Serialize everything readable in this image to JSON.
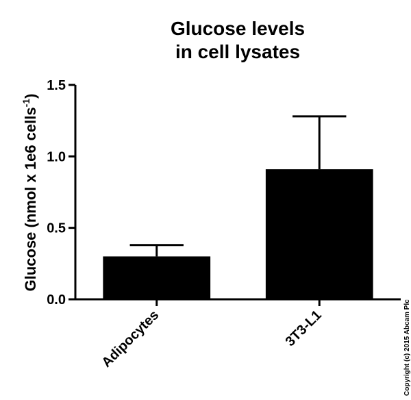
{
  "chart_data": {
    "type": "bar",
    "title_lines": [
      "Glucose levels",
      "in cell lysates"
    ],
    "ylabel": {
      "main": "Glucose (nmol x 1e6 cells",
      "superscript": "-1",
      "close": ")"
    },
    "categories": [
      "Adipocytes",
      "3T3-L1"
    ],
    "values": [
      0.3,
      0.91
    ],
    "error_upper": [
      0.38,
      1.28
    ],
    "ylim": [
      0,
      1.5
    ],
    "yticks": [
      0.0,
      0.5,
      1.0,
      1.5
    ],
    "ytick_labels": [
      "0.0",
      "0.5",
      "1.0",
      "1.5"
    ],
    "bar_color": "#000000",
    "grid": false,
    "legend": "none"
  },
  "copyright": "Copyright (c) 2015 Abcam Plc"
}
